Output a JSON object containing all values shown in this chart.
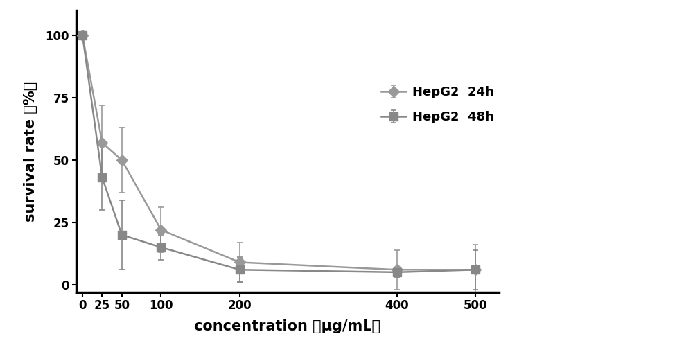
{
  "x": [
    0,
    25,
    50,
    100,
    200,
    400,
    500
  ],
  "y_24h": [
    100,
    57,
    50,
    22,
    9,
    6,
    6
  ],
  "y_48h": [
    100,
    43,
    20,
    15,
    6,
    5,
    6
  ],
  "err_24h": [
    0,
    15,
    13,
    9,
    8,
    8,
    10
  ],
  "err_48h": [
    0,
    13,
    14,
    5,
    5,
    2,
    8
  ],
  "color_24h": "#999999",
  "color_48h": "#888888",
  "xlabel": "concentration （μg/mL）",
  "ylabel": "survival rate （%）",
  "legend_24h": "HepG2  24h",
  "legend_48h": "HepG2  48h",
  "ylim": [
    -3,
    110
  ],
  "xlim": [
    -8,
    530
  ],
  "yticks": [
    0,
    25,
    50,
    75,
    100
  ],
  "xticks": [
    0,
    25,
    50,
    100,
    200,
    400,
    500
  ],
  "background_color": "#ffffff",
  "axis_color": "#000000",
  "fontsize_label": 15,
  "fontsize_tick": 12,
  "fontsize_legend": 13,
  "linewidth": 1.8,
  "markersize_diamond": 8,
  "markersize_square": 8,
  "spine_linewidth": 2.5
}
